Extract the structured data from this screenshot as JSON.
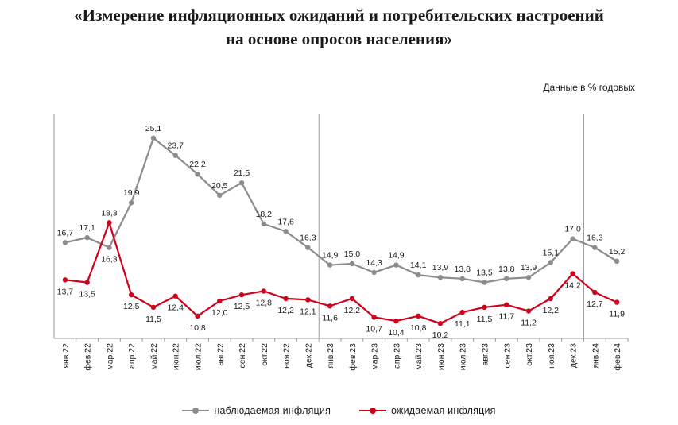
{
  "title": {
    "line1": "«Измерение инфляционных ожиданий и потребительских настроений",
    "line2": "на основе опросов населения»"
  },
  "units_note": "Данные в % годовых",
  "colors": {
    "observed": "#8c8c8c",
    "expected": "#d0021b",
    "axis": "#9a9a9a"
  },
  "chart_data": {
    "type": "line",
    "title": "«Измерение инфляционных ожиданий и потребительских настроений на основе опросов населения»",
    "ylabel": "Данные в % годовых",
    "ylim": [
      9,
      27
    ],
    "categories": [
      "янв.22",
      "фев.22",
      "мар.22",
      "апр.22",
      "май.22",
      "июн.22",
      "июл.22",
      "авг.22",
      "сен.22",
      "окт.22",
      "ноя.22",
      "дек.22",
      "янв.23",
      "фев.23",
      "мар.23",
      "апр.23",
      "май.23",
      "июн.23",
      "июл.23",
      "авг.23",
      "сен.23",
      "окт.23",
      "ноя.23",
      "дек.23",
      "янв.24",
      "фев.24"
    ],
    "year_separators_after": [
      "дек.22",
      "дек.23"
    ],
    "series": [
      {
        "name": "наблюдаемая инфляция",
        "values": [
          16.7,
          17.1,
          16.3,
          19.9,
          25.1,
          23.7,
          22.2,
          20.5,
          21.5,
          18.2,
          17.6,
          16.3,
          14.9,
          15.0,
          14.3,
          14.9,
          14.1,
          13.9,
          13.8,
          13.5,
          13.8,
          13.9,
          15.1,
          17.0,
          16.3,
          15.2
        ],
        "labels": [
          "16,7",
          "17,1",
          "16,3",
          "19,9",
          "25,1",
          "23,7",
          "22,2",
          "20,5",
          "21,5",
          "18,2",
          "17,6",
          "16,3",
          "14,9",
          "15,0",
          "14,3",
          "14,9",
          "14,1",
          "13,9",
          "13,8",
          "13,5",
          "13,8",
          "13,9",
          "15,1",
          "17,0",
          "16,3",
          "15,2"
        ],
        "label_pos": [
          "above",
          "above",
          "below",
          "above",
          "above",
          "above",
          "above",
          "above",
          "above",
          "above",
          "above",
          "above",
          "above",
          "above",
          "above",
          "above",
          "above",
          "above",
          "above",
          "above",
          "above",
          "above",
          "above",
          "above",
          "above",
          "above"
        ]
      },
      {
        "name": "ожидаемая инфляция",
        "values": [
          13.7,
          13.5,
          18.3,
          12.5,
          11.5,
          12.4,
          10.8,
          12.0,
          12.5,
          12.8,
          12.2,
          12.1,
          11.6,
          12.2,
          10.7,
          10.4,
          10.8,
          10.2,
          11.1,
          11.5,
          11.7,
          11.2,
          12.2,
          14.2,
          12.7,
          11.9
        ],
        "labels": [
          "13,7",
          "13,5",
          "18,3",
          "12,5",
          "11,5",
          "12,4",
          "10,8",
          "12,0",
          "12,5",
          "12,8",
          "12,2",
          "12,1",
          "11,6",
          "12,2",
          "10,7",
          "10,4",
          "10,8",
          "10,2",
          "11,1",
          "11,5",
          "11,7",
          "11,2",
          "12,2",
          "14,2",
          "12,7",
          "11,9"
        ],
        "label_pos": [
          "below",
          "below",
          "above",
          "below",
          "below",
          "below",
          "below",
          "below",
          "below",
          "below",
          "below",
          "below",
          "below",
          "below",
          "below",
          "below",
          "below",
          "below",
          "below",
          "below",
          "below",
          "below",
          "below",
          "below",
          "below",
          "below"
        ]
      }
    ]
  }
}
